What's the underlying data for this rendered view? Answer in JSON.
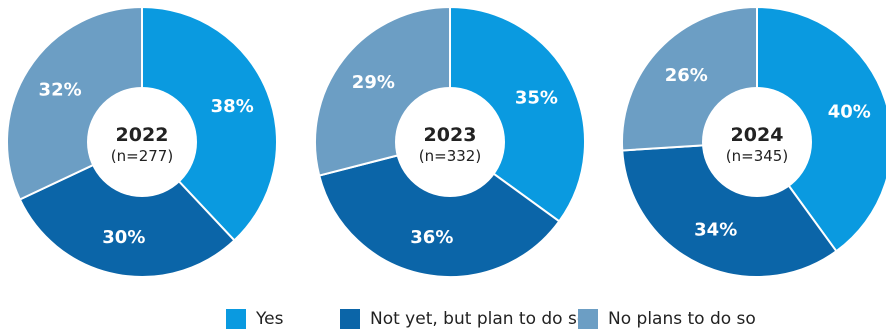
{
  "chart_data": {
    "type": "pie",
    "title": "",
    "legend_position": "bottom",
    "series": [
      {
        "name": "Yes",
        "color": "#0a9ae0"
      },
      {
        "name": "Not yet, but plan to do so",
        "color": "#0b65a8"
      },
      {
        "name": "No plans to do so",
        "color": "#6c9ec4"
      }
    ],
    "charts": [
      {
        "year": "2022",
        "n": "(n=277)",
        "values": [
          38,
          30,
          32
        ],
        "labels": [
          "38%",
          "30%",
          "32%"
        ]
      },
      {
        "year": "2023",
        "n": "(n=332)",
        "values": [
          35,
          36,
          29
        ],
        "labels": [
          "35%",
          "36%",
          "29%"
        ]
      },
      {
        "year": "2024",
        "n": "(n=345)",
        "values": [
          40,
          34,
          26
        ],
        "labels": [
          "40%",
          "34%",
          "26%"
        ]
      }
    ]
  }
}
